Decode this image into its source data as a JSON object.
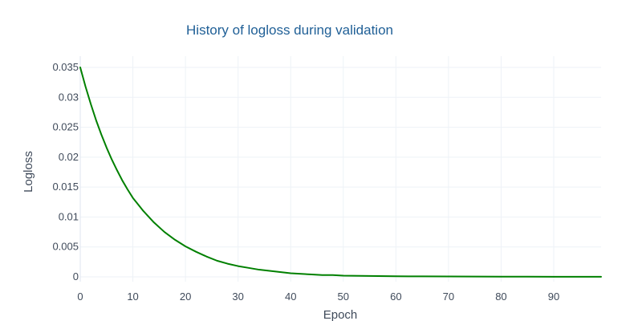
{
  "chart_data": {
    "type": "line",
    "title": "History of logloss during validation",
    "xlabel": "Epoch",
    "ylabel": "Logloss",
    "xlim": [
      0,
      99
    ],
    "ylim": [
      0,
      0.036
    ],
    "x_ticks": [
      0,
      10,
      20,
      30,
      40,
      50,
      60,
      70,
      80,
      90
    ],
    "x_tick_labels": [
      "0",
      "10",
      "20",
      "30",
      "40",
      "50",
      "60",
      "70",
      "80",
      "90"
    ],
    "y_ticks": [
      0,
      0.005,
      0.01,
      0.015,
      0.02,
      0.025,
      0.03,
      0.035
    ],
    "y_tick_labels": [
      "0",
      "0.005",
      "0.01",
      "0.015",
      "0.02",
      "0.025",
      "0.03",
      "0.035"
    ],
    "grid": true,
    "legend": false,
    "series": [
      {
        "color": "#008000",
        "x": [
          0,
          1,
          2,
          3,
          4,
          5,
          6,
          7,
          8,
          9,
          10,
          12,
          14,
          16,
          18,
          20,
          22,
          24,
          26,
          28,
          30,
          32,
          34,
          36,
          38,
          40,
          42,
          44,
          46,
          48,
          50,
          55,
          60,
          65,
          70,
          75,
          80,
          85,
          90,
          95,
          99
        ],
        "y": [
          0.035,
          0.0318,
          0.0289,
          0.0262,
          0.0238,
          0.0216,
          0.0196,
          0.0178,
          0.0161,
          0.0146,
          0.0132,
          0.011,
          0.0091,
          0.0075,
          0.0062,
          0.0051,
          0.0042,
          0.0034,
          0.0027,
          0.0022,
          0.0018,
          0.0015,
          0.0012,
          0.001,
          0.0008,
          0.0006,
          0.0005,
          0.0004,
          0.0003,
          0.0003,
          0.0002,
          0.00015,
          0.0001,
          8e-05,
          6e-05,
          5e-05,
          4e-05,
          3e-05,
          2e-05,
          1e-05,
          1e-05
        ]
      }
    ]
  }
}
